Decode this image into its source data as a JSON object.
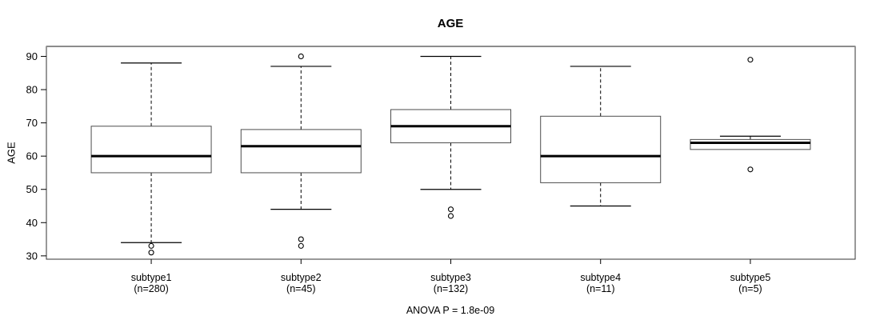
{
  "chart_data": {
    "type": "boxplot",
    "title": "AGE",
    "xlabel": "",
    "ylabel": "AGE",
    "annotation": "ANOVA P = 1.8e-09",
    "ylim": [
      29,
      93
    ],
    "yticks": [
      30,
      40,
      50,
      60,
      70,
      80,
      90
    ],
    "grid": false,
    "legend": "none",
    "categories": [
      "subtype1",
      "subtype2",
      "subtype3",
      "subtype4",
      "subtype5"
    ],
    "groups": [
      {
        "label": "subtype1",
        "count_label": "(n=280)",
        "n": 280,
        "whisker_low": 34,
        "q1": 55,
        "median": 60,
        "q3": 69,
        "whisker_high": 88,
        "outliers": [
          33,
          31
        ]
      },
      {
        "label": "subtype2",
        "count_label": "(n=45)",
        "n": 45,
        "whisker_low": 44,
        "q1": 55,
        "median": 63,
        "q3": 68,
        "whisker_high": 87,
        "outliers": [
          90,
          35,
          33
        ]
      },
      {
        "label": "subtype3",
        "count_label": "(n=132)",
        "n": 132,
        "whisker_low": 50,
        "q1": 64,
        "median": 69,
        "q3": 74,
        "whisker_high": 90,
        "outliers": [
          44,
          42
        ]
      },
      {
        "label": "subtype4",
        "count_label": "(n=11)",
        "n": 11,
        "whisker_low": 45,
        "q1": 52,
        "median": 60,
        "q3": 72,
        "whisker_high": 87,
        "outliers": []
      },
      {
        "label": "subtype5",
        "count_label": "(n=5)",
        "n": 5,
        "whisker_low": 62,
        "q1": 62,
        "median": 64,
        "q3": 65,
        "whisker_high": 66,
        "outliers": [
          89,
          56
        ]
      }
    ],
    "colors": {
      "box_fill": "#ffffff",
      "box_stroke": "#4d4d4d",
      "median_stroke": "#000000",
      "frame_top_stroke": "#8c8c8c",
      "frame_stroke": "#333333",
      "background": "#ffffff"
    }
  }
}
